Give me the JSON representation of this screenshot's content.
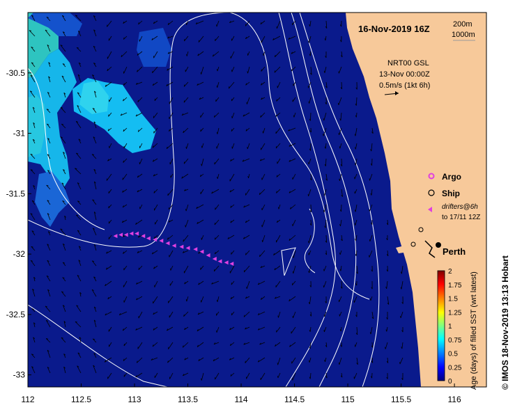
{
  "map": {
    "title": "16-Nov-2019 16Z",
    "depth_legend": [
      "200m",
      "1000m"
    ],
    "current_info": [
      "NRT00 GSL",
      "13-Nov 00:00Z",
      "0.5m/s (1kt 6h)"
    ],
    "legend": {
      "argo": "Argo",
      "ship": "Ship",
      "drifters_line1": "drifters@6h",
      "drifters_line2": "to 17/11 12Z"
    },
    "city": "Perth",
    "credit": "© IMOS 18-Nov-2019 13:13 Hobart",
    "colorbar": {
      "label": "Age (days) of filled SST (wrt latest)",
      "ticks": [
        "2",
        "1.75",
        "1.5",
        "1.25",
        "1",
        "0.75",
        "0.5",
        "0.25",
        "0"
      ],
      "range": [
        0,
        2
      ]
    },
    "lon_ticks": [
      "112",
      "112.5",
      "113",
      "113.5",
      "114",
      "114.5",
      "115",
      "115.5",
      "116"
    ],
    "lat_ticks": [
      "-30.5",
      "-31",
      "-31.5",
      "-32",
      "-32.5",
      "-33"
    ],
    "extent": {
      "lon": [
        112,
        116.3
      ],
      "lat": [
        -33.1,
        -30.0
      ]
    },
    "colors": {
      "ocean": "#0a1a8c",
      "land": "#f7c99a",
      "argo": "#e040e0",
      "drifter": "#e040e0",
      "contour": "#ffffff"
    },
    "drifter_track": [
      [
        112.82,
        -31.85
      ],
      [
        112.87,
        -31.84
      ],
      [
        112.92,
        -31.84
      ],
      [
        112.97,
        -31.83
      ],
      [
        113.02,
        -31.83
      ],
      [
        113.08,
        -31.85
      ],
      [
        113.13,
        -31.87
      ],
      [
        113.19,
        -31.88
      ],
      [
        113.25,
        -31.89
      ],
      [
        113.31,
        -31.91
      ],
      [
        113.37,
        -31.93
      ],
      [
        113.44,
        -31.94
      ],
      [
        113.5,
        -31.95
      ],
      [
        113.57,
        -31.96
      ],
      [
        113.63,
        -31.98
      ],
      [
        113.69,
        -32.01
      ],
      [
        113.75,
        -32.04
      ],
      [
        113.8,
        -32.06
      ],
      [
        113.86,
        -32.07
      ],
      [
        113.91,
        -32.08
      ]
    ]
  }
}
